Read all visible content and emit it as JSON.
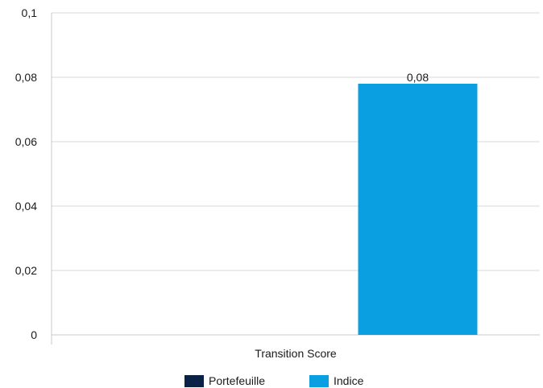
{
  "chart_data": {
    "type": "bar",
    "title": "",
    "xlabel": "",
    "ylabel": "",
    "categories": [
      "Transition Score"
    ],
    "series": [
      {
        "name": "Portefeuille",
        "values": [
          null
        ],
        "color": "#0b2247"
      },
      {
        "name": "Indice",
        "values": [
          0.078
        ],
        "color": "#0a9fe0"
      }
    ],
    "data_labels": [
      {
        "series": "Indice",
        "category": "Transition Score",
        "text": "0,08"
      }
    ],
    "ylim": [
      0,
      0.1
    ],
    "y_ticks": [
      {
        "value": 0,
        "label": "0"
      },
      {
        "value": 0.02,
        "label": "0,02"
      },
      {
        "value": 0.04,
        "label": "0,04"
      },
      {
        "value": 0.06,
        "label": "0,06"
      },
      {
        "value": 0.08,
        "label": "0,08"
      },
      {
        "value": 0.1,
        "label": "0,1"
      }
    ],
    "grid": true,
    "legend_position": "bottom"
  }
}
